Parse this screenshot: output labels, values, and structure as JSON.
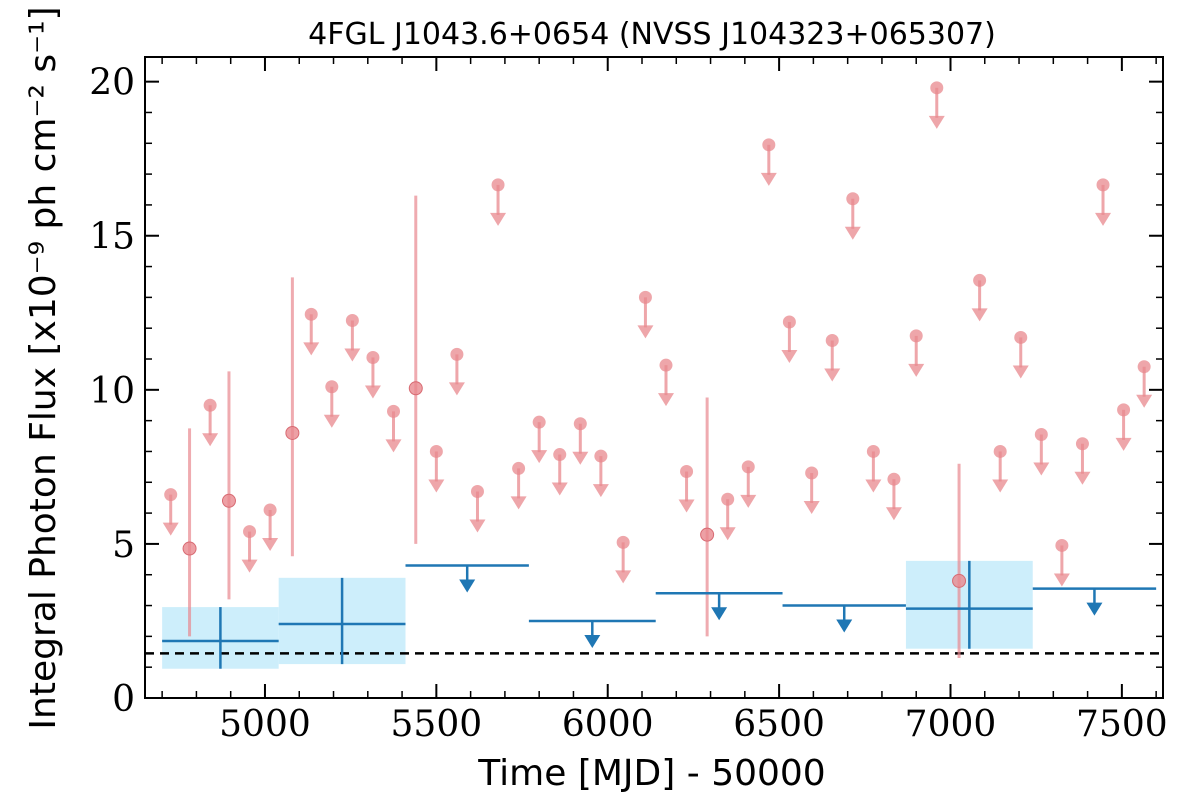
{
  "chart_data": {
    "type": "scatter",
    "title": "4FGL J1043.6+0654 (NVSS J104323+065307)",
    "xlabel": "Time [MJD] - 50000",
    "ylabel": "Integral Photon Flux [x10⁻⁹ ph cm⁻² s⁻¹]",
    "xlim": [
      4650,
      7620
    ],
    "ylim": [
      0,
      20.8
    ],
    "x_ticks": [
      5000,
      5500,
      6000,
      6500,
      7000,
      7500
    ],
    "y_ticks": [
      0,
      5,
      10,
      15,
      20
    ],
    "x_tick_labels": [
      "5000",
      "5500",
      "6000",
      "6500",
      "7000",
      "7500"
    ],
    "y_tick_labels": [
      "0",
      "5",
      "10",
      "15",
      "20"
    ],
    "reference_level": 1.45,
    "colors": {
      "short_bins": "#e8888e",
      "long_bins": "#1f77b4",
      "long_bins_band": "#cdeefb",
      "reference_line": "#000000"
    },
    "series": [
      {
        "kind": "short_bin_detections",
        "points": [
          {
            "x": 4780,
            "y": 4.85,
            "ylo": 2.0,
            "yhi": 8.75
          },
          {
            "x": 4895,
            "y": 6.4,
            "ylo": 3.2,
            "yhi": 10.6
          },
          {
            "x": 5080,
            "y": 8.6,
            "ylo": 4.6,
            "yhi": 13.65
          },
          {
            "x": 5440,
            "y": 10.05,
            "ylo": 5.0,
            "yhi": 16.3
          },
          {
            "x": 6290,
            "y": 5.3,
            "ylo": 2.0,
            "yhi": 9.75
          },
          {
            "x": 7025,
            "y": 3.8,
            "ylo": 1.3,
            "yhi": 7.6
          }
        ]
      },
      {
        "kind": "short_bin_upper_limits",
        "x": [
          4725,
          4840,
          4955,
          5015,
          5135,
          5195,
          5255,
          5315,
          5375,
          5500,
          5560,
          5620,
          5680,
          5740,
          5800,
          5860,
          5920,
          5980,
          6045,
          6110,
          6170,
          6230,
          6350,
          6410,
          6470,
          6530,
          6595,
          6655,
          6715,
          6775,
          6835,
          6900,
          6960,
          7085,
          7145,
          7205,
          7265,
          7325,
          7385,
          7445,
          7505,
          7565
        ],
        "y": [
          6.6,
          9.5,
          5.4,
          6.1,
          12.45,
          10.1,
          12.25,
          11.05,
          9.3,
          8.0,
          11.15,
          6.7,
          16.65,
          7.45,
          8.95,
          7.9,
          8.9,
          7.85,
          5.05,
          13.0,
          10.8,
          7.35,
          6.45,
          7.5,
          17.95,
          12.2,
          7.3,
          11.6,
          16.2,
          8.0,
          7.1,
          11.75,
          19.8,
          13.55,
          8.0,
          11.7,
          8.55,
          4.95,
          8.25,
          16.65,
          9.35,
          10.75
        ]
      },
      {
        "kind": "long_bin_detections",
        "bins": [
          {
            "x0": 4700,
            "x1": 5040,
            "y": 1.85,
            "ylo": 0.95,
            "yhi": 2.95
          },
          {
            "x0": 5040,
            "x1": 5410,
            "y": 2.4,
            "ylo": 1.1,
            "yhi": 3.9
          },
          {
            "x0": 6870,
            "x1": 7240,
            "y": 2.9,
            "ylo": 1.6,
            "yhi": 4.45
          }
        ]
      },
      {
        "kind": "long_bin_upper_limits",
        "bins": [
          {
            "x0": 5410,
            "x1": 5770,
            "y": 4.3
          },
          {
            "x0": 5770,
            "x1": 6140,
            "y": 2.5
          },
          {
            "x0": 6140,
            "x1": 6510,
            "y": 3.4
          },
          {
            "x0": 6510,
            "x1": 6870,
            "y": 3.0
          },
          {
            "x0": 7240,
            "x1": 7600,
            "y": 3.55
          }
        ]
      }
    ]
  }
}
